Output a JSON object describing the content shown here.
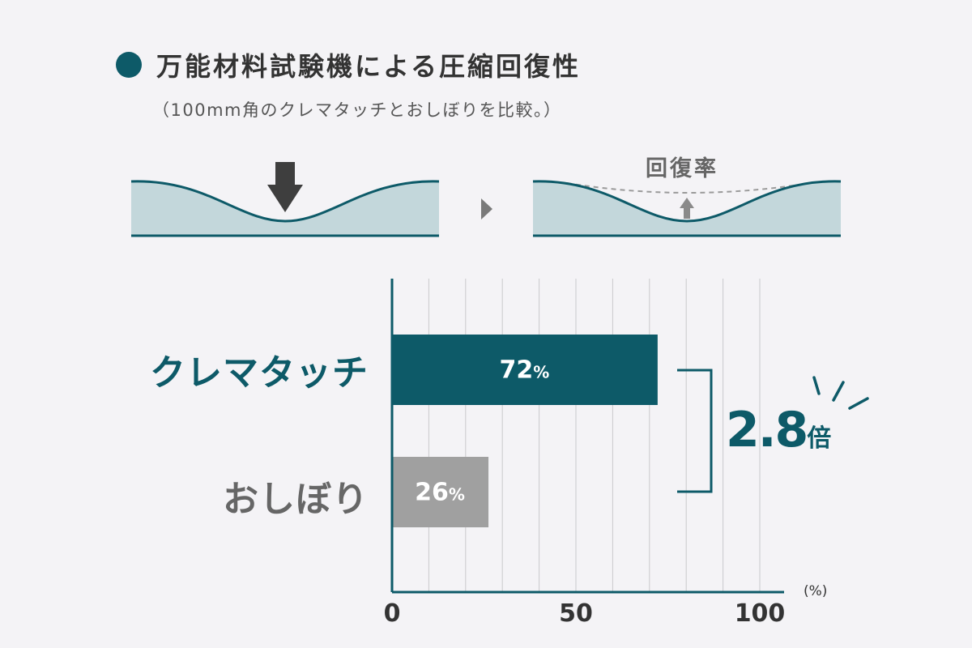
{
  "title": "万能材料試験機による圧縮回復性",
  "subtitle": "（100mm角のクレマタッチとおしぼりを比較。）",
  "diagram": {
    "recovery_label": "回復率"
  },
  "multiplier": {
    "value": "2.8",
    "unit": "倍"
  },
  "colors": {
    "accent": "#0d5a68",
    "gray_bar": "#a0a0a0",
    "text_gray": "#666666"
  },
  "chart_data": {
    "type": "bar",
    "orientation": "horizontal",
    "categories": [
      "クレマタッチ",
      "おしぼり"
    ],
    "values": [
      72,
      26
    ],
    "value_labels": [
      "72",
      "26"
    ],
    "value_suffix": "%",
    "xlim": [
      0,
      105
    ],
    "ticks": [
      0,
      50,
      100
    ],
    "tick_labels": [
      "0",
      "50",
      "100"
    ],
    "unit_label": "(%)",
    "grid": true,
    "bar_colors": [
      "#0d5a68",
      "#a0a0a0"
    ]
  }
}
